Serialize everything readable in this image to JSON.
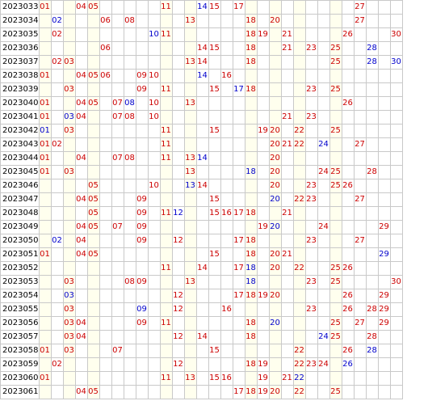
{
  "colors": {
    "red": "#cc0000",
    "blue": "#0000cc",
    "shade": "#ffffee",
    "grid_line": "#c9c9c9"
  },
  "rows": [
    {
      "issue": "2023033",
      "red": [
        1,
        4,
        5,
        11,
        15,
        17,
        27
      ],
      "blue": [
        14
      ]
    },
    {
      "issue": "2023034",
      "red": [
        6,
        8,
        13,
        18,
        20,
        27
      ],
      "blue": [
        2
      ]
    },
    {
      "issue": "2023035",
      "red": [
        2,
        11,
        18,
        19,
        21,
        26,
        30
      ],
      "blue": [
        10
      ]
    },
    {
      "issue": "2023036",
      "red": [
        6,
        14,
        15,
        18,
        21,
        23,
        25
      ],
      "blue": [
        28
      ]
    },
    {
      "issue": "2023037",
      "red": [
        2,
        3,
        13,
        14,
        18,
        25
      ],
      "blue": [
        28,
        30
      ]
    },
    {
      "issue": "2023038",
      "red": [
        1,
        4,
        5,
        6,
        9,
        10,
        16
      ],
      "blue": [
        14
      ]
    },
    {
      "issue": "2023039",
      "red": [
        3,
        9,
        11,
        15,
        18,
        23,
        25
      ],
      "blue": [
        17
      ]
    },
    {
      "issue": "2023040",
      "red": [
        1,
        4,
        5,
        7,
        10,
        13,
        26
      ],
      "blue": [
        8
      ]
    },
    {
      "issue": "2023041",
      "red": [
        1,
        4,
        7,
        8,
        10,
        21,
        23
      ],
      "blue": [
        3
      ]
    },
    {
      "issue": "2023042",
      "red": [
        3,
        11,
        15,
        19,
        20,
        22,
        25
      ],
      "blue": [
        1
      ]
    },
    {
      "issue": "2023043",
      "red": [
        1,
        2,
        11,
        20,
        21,
        22,
        27
      ],
      "blue": [
        24
      ]
    },
    {
      "issue": "2023044",
      "red": [
        1,
        4,
        7,
        8,
        11,
        13,
        20
      ],
      "blue": [
        14
      ]
    },
    {
      "issue": "2023045",
      "red": [
        1,
        3,
        13,
        20,
        24,
        25,
        28
      ],
      "blue": [
        18
      ]
    },
    {
      "issue": "2023046",
      "red": [
        5,
        10,
        14,
        20,
        23,
        25,
        26
      ],
      "blue": [
        13
      ]
    },
    {
      "issue": "2023047",
      "red": [
        4,
        5,
        9,
        15,
        22,
        23,
        27
      ],
      "blue": [
        20
      ]
    },
    {
      "issue": "2023048",
      "red": [
        5,
        9,
        11,
        15,
        16,
        17,
        18,
        21
      ],
      "blue": [
        12
      ]
    },
    {
      "issue": "2023049",
      "red": [
        4,
        5,
        7,
        9,
        19,
        24,
        29
      ],
      "blue": [
        20
      ]
    },
    {
      "issue": "2023050",
      "red": [
        4,
        9,
        12,
        17,
        18,
        23,
        27
      ],
      "blue": [
        2
      ]
    },
    {
      "issue": "2023051",
      "red": [
        1,
        4,
        5,
        15,
        18,
        20,
        21
      ],
      "blue": [
        29
      ]
    },
    {
      "issue": "2023052",
      "red": [
        11,
        14,
        17,
        20,
        22,
        25,
        26
      ],
      "blue": [
        18
      ]
    },
    {
      "issue": "2023053",
      "red": [
        3,
        8,
        9,
        13,
        23,
        25,
        30
      ],
      "blue": [
        18
      ]
    },
    {
      "issue": "2023054",
      "red": [
        12,
        17,
        18,
        19,
        20,
        26,
        29
      ],
      "blue": [
        3
      ]
    },
    {
      "issue": "2023055",
      "red": [
        3,
        12,
        16,
        23,
        26,
        28,
        29
      ],
      "blue": [
        9
      ]
    },
    {
      "issue": "2023056",
      "red": [
        3,
        4,
        9,
        11,
        18,
        25,
        27,
        29
      ],
      "blue": [
        20
      ]
    },
    {
      "issue": "2023057",
      "red": [
        3,
        4,
        12,
        14,
        18,
        25,
        28
      ],
      "blue": [
        24
      ]
    },
    {
      "issue": "2023058",
      "red": [
        1,
        3,
        7,
        15,
        22,
        26
      ],
      "blue": [
        28
      ]
    },
    {
      "issue": "2023059",
      "red": [
        2,
        12,
        18,
        19,
        22,
        23,
        24
      ],
      "blue": [
        26
      ]
    },
    {
      "issue": "2023060",
      "red": [
        1,
        11,
        13,
        15,
        16,
        19,
        21
      ],
      "blue": [
        22
      ]
    },
    {
      "issue": "2023061",
      "red": [
        4,
        5,
        17,
        18,
        19,
        20,
        22,
        25
      ],
      "blue": []
    }
  ]
}
